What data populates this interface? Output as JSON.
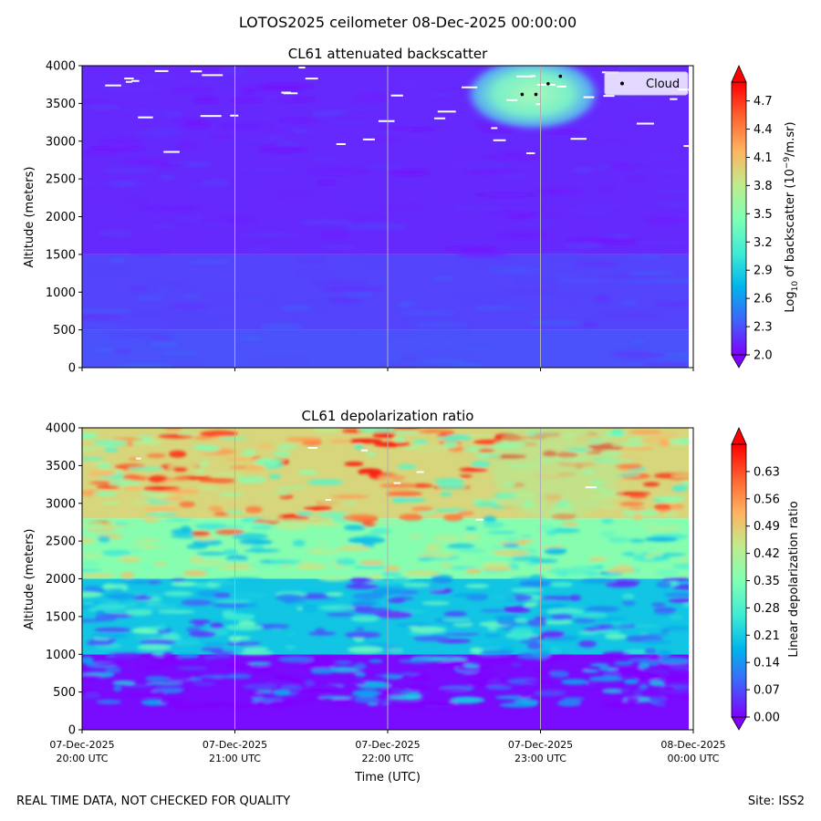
{
  "figure": {
    "suptitle": "LOTOS2025 ceilometer 08-Dec-2025 00:00:00",
    "footer_left": "REAL TIME DATA, NOT CHECKED FOR QUALITY",
    "footer_right": "Site: ISS2"
  },
  "chart_data": [
    {
      "type": "heatmap",
      "title": "CL61 attenuated backscatter",
      "ylabel": "Altitude (meters)",
      "xlabel": "",
      "ylim": [
        0,
        4000
      ],
      "yticks": [
        0,
        500,
        1000,
        1500,
        2000,
        2500,
        3000,
        3500,
        4000
      ],
      "x_time_ticks": [
        "07-Dec-2025 20:00 UTC",
        "07-Dec-2025 21:00 UTC",
        "07-Dec-2025 22:00 UTC",
        "07-Dec-2025 23:00 UTC",
        "08-Dec-2025 00:00 UTC"
      ],
      "vertical_gridlines": true,
      "colormap": "rainbow",
      "colorbar": {
        "label_prefix": "Log",
        "label_sub": "10",
        "label_mid": " of backscatter (10",
        "label_sup": "−9",
        "label_suffix": "/m.sr)",
        "range": [
          2.0,
          4.9
        ],
        "ticks": [
          "2.0",
          "2.3",
          "2.6",
          "2.9",
          "3.2",
          "3.5",
          "3.8",
          "4.1",
          "4.4",
          "4.7"
        ],
        "tick_values": [
          2.0,
          2.3,
          2.6,
          2.9,
          3.2,
          3.5,
          3.8,
          4.1,
          4.4,
          4.7
        ]
      },
      "legend": {
        "position": "top-right",
        "entries": [
          "Cloud"
        ]
      },
      "cloud_points": [
        {
          "time_hours": 2.88,
          "altitude": 3620
        },
        {
          "time_hours": 2.97,
          "altitude": 3620
        },
        {
          "time_hours": 3.05,
          "altitude": 3760
        },
        {
          "time_hours": 3.13,
          "altitude": 3860
        }
      ],
      "high_backscatter_region": {
        "time_hours_range": [
          2.5,
          3.4
        ],
        "altitude_range": [
          3350,
          4000
        ],
        "value": 3.6
      },
      "background_values": [
        {
          "altitude_range": [
            0,
            500
          ],
          "value": 2.3
        },
        {
          "altitude_range": [
            500,
            1500
          ],
          "value": 2.25
        },
        {
          "altitude_range": [
            1500,
            4000
          ],
          "value": 2.15
        }
      ]
    },
    {
      "type": "heatmap",
      "title": "CL61 depolarization ratio",
      "ylabel": "Altitude (meters)",
      "xlabel": "Time (UTC)",
      "ylim": [
        0,
        4000
      ],
      "yticks": [
        0,
        500,
        1000,
        1500,
        2000,
        2500,
        3000,
        3500,
        4000
      ],
      "x_time_ticks": [
        "07-Dec-2025 20:00 UTC",
        "07-Dec-2025 21:00 UTC",
        "07-Dec-2025 22:00 UTC",
        "07-Dec-2025 23:00 UTC",
        "08-Dec-2025 00:00 UTC"
      ],
      "vertical_gridlines": true,
      "colormap": "rainbow",
      "colorbar": {
        "label": "Linear depolarization ratio",
        "range": [
          0.0,
          0.7
        ],
        "ticks": [
          "0.00",
          "0.07",
          "0.14",
          "0.21",
          "0.28",
          "0.35",
          "0.42",
          "0.49",
          "0.56",
          "0.63"
        ],
        "tick_values": [
          0.0,
          0.07,
          0.14,
          0.21,
          0.28,
          0.35,
          0.42,
          0.49,
          0.56,
          0.63
        ]
      },
      "background_values": [
        {
          "altitude_range": [
            0,
            1000
          ],
          "value": 0.01
        },
        {
          "altitude_range": [
            1000,
            2000
          ],
          "value": 0.2
        },
        {
          "altitude_range": [
            2000,
            2800
          ],
          "value": 0.36
        },
        {
          "altitude_range": [
            2800,
            4000
          ],
          "value": 0.47
        }
      ]
    }
  ]
}
